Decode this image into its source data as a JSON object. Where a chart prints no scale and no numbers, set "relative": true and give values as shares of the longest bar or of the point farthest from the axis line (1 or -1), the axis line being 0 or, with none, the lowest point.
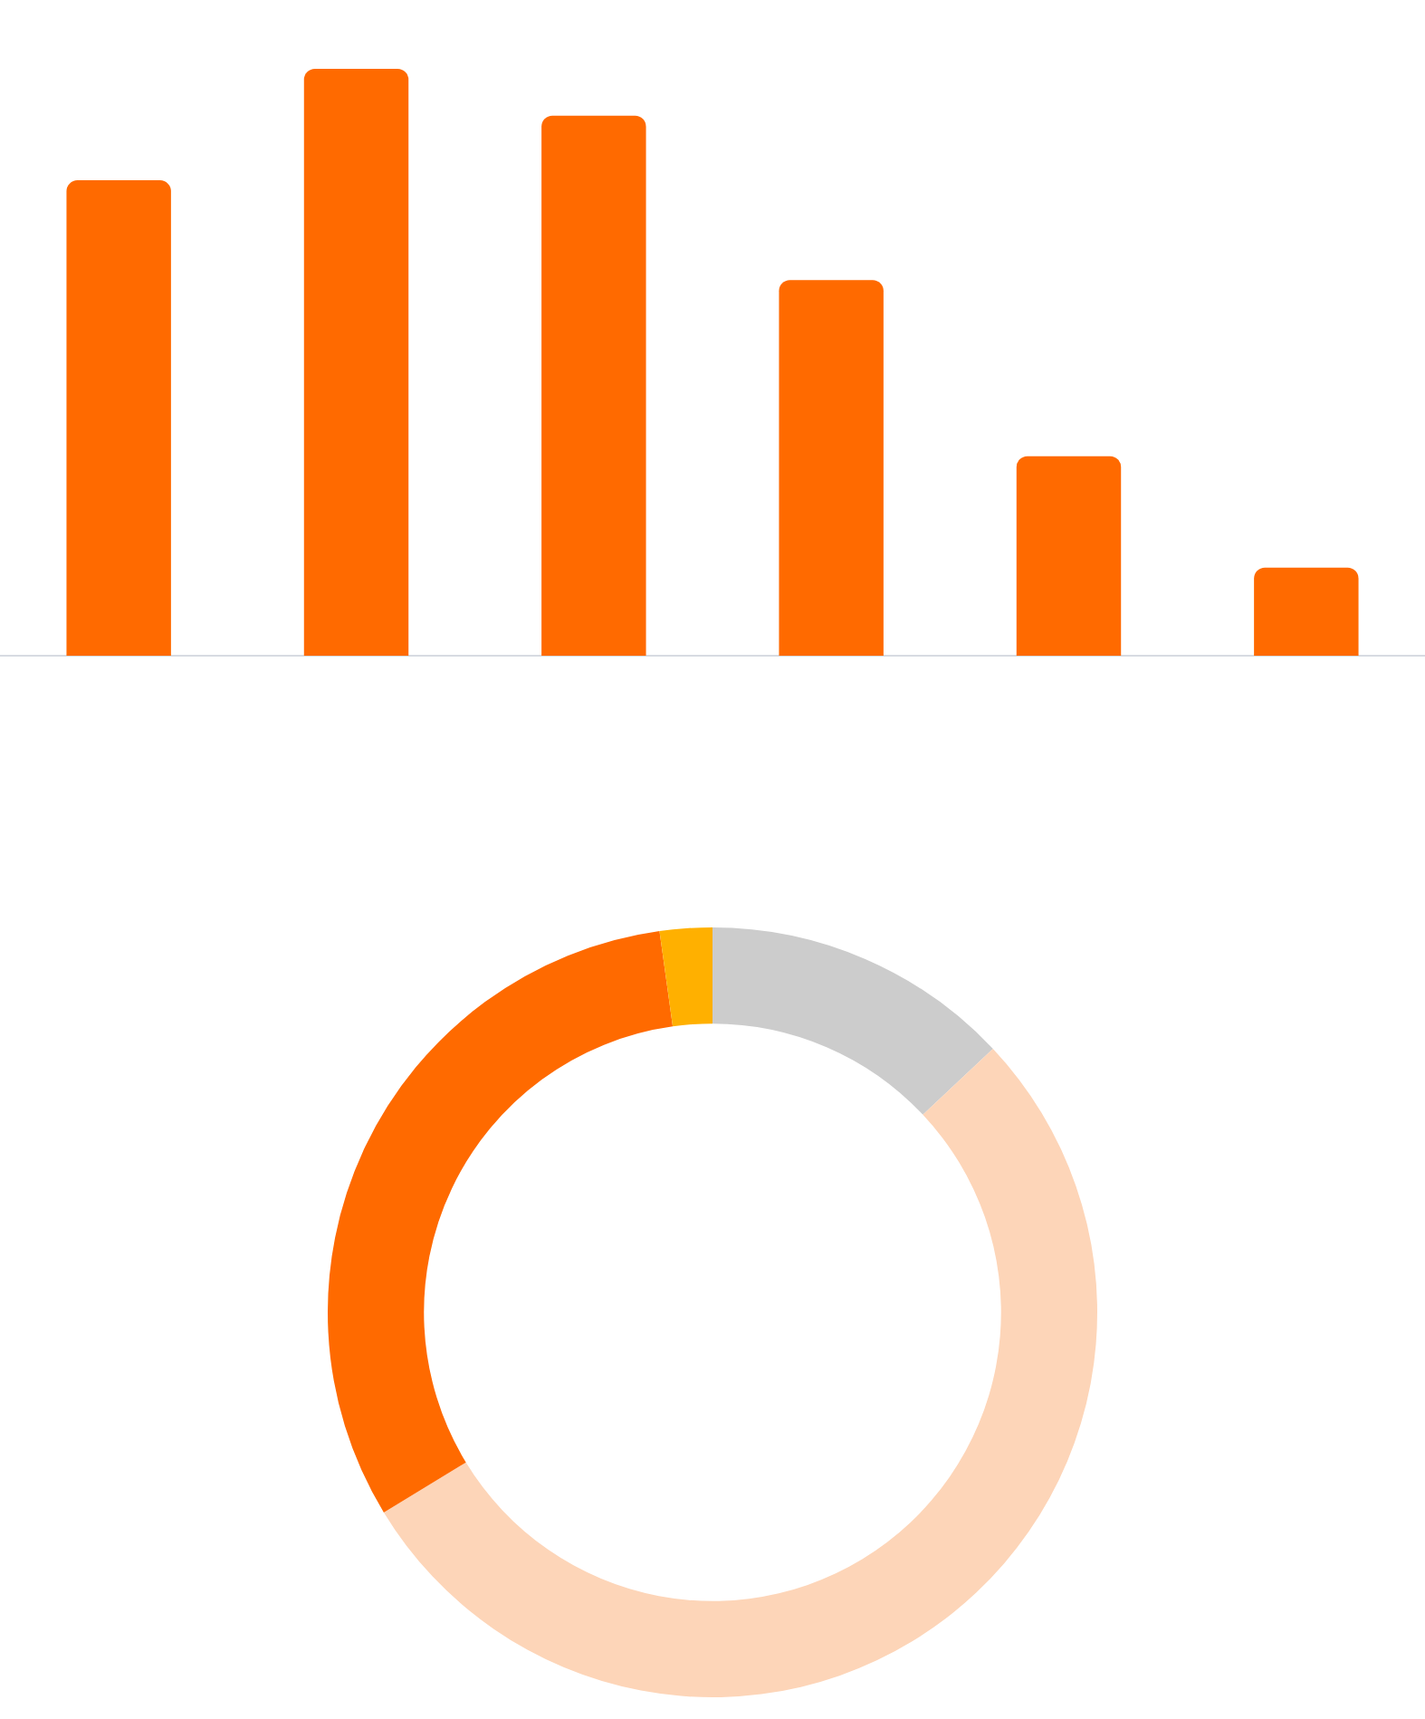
{
  "chart_data": [
    {
      "type": "bar",
      "relative": true,
      "categories": [
        null,
        null,
        null,
        null,
        null,
        null
      ],
      "values": [
        0.81,
        1,
        0.92,
        0.64,
        0.34,
        0.15
      ],
      "color": "#ff6a00"
    },
    {
      "type": "donut",
      "categories": [
        null,
        null,
        null,
        null
      ],
      "values": [
        13,
        53.3,
        31.5,
        2.2
      ],
      "colors": [
        "#cccccc",
        "#fdd5b8",
        "#ff6a00",
        "#ffb000"
      ]
    }
  ]
}
